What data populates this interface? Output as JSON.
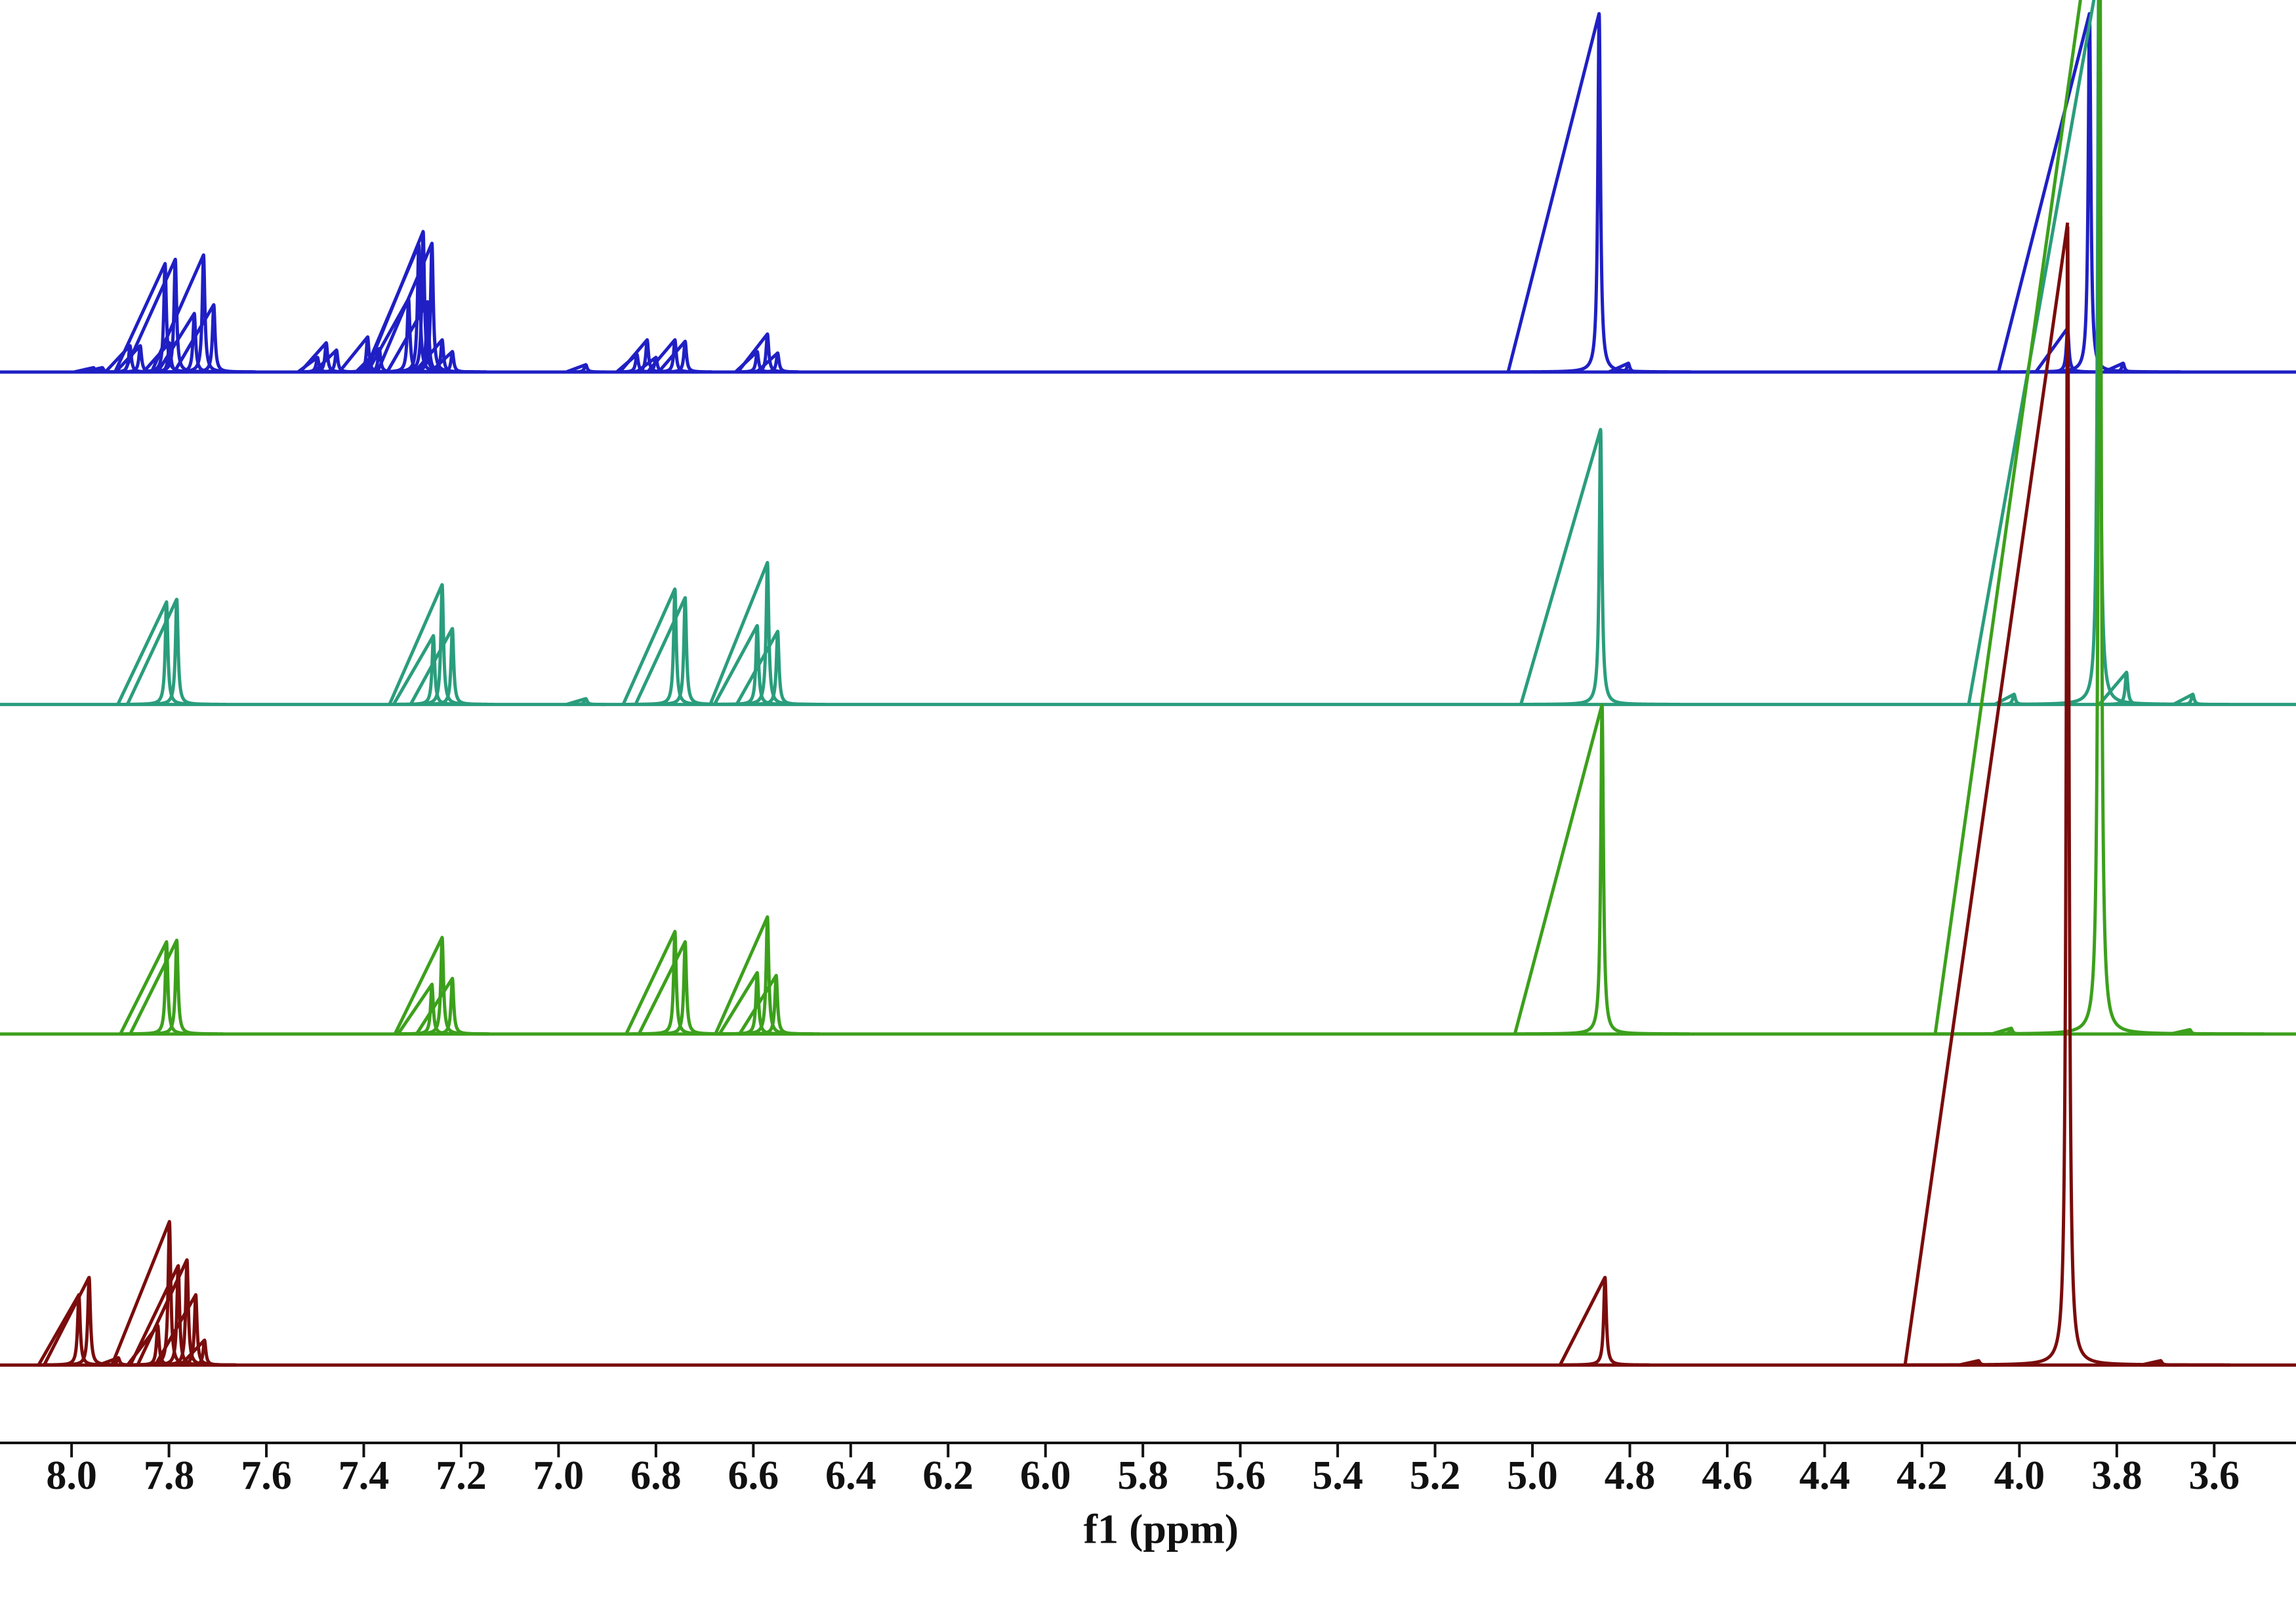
{
  "chart_data": {
    "type": "spectrum",
    "x_label": "f1 (ppm)",
    "xlim": [
      8.147,
      3.432
    ],
    "xticks": [
      {
        "value": 8,
        "label": "8.0"
      },
      7.8,
      7.6,
      7.4,
      7.2,
      {
        "value": 7,
        "label": "7.0"
      },
      6.8,
      6.6,
      6.4,
      6.2,
      {
        "value": 6,
        "label": "6.0"
      },
      5.8,
      5.6,
      5.4,
      5.2,
      {
        "value": 5,
        "label": "5.0"
      },
      4.8,
      4.6,
      4.4,
      4.2,
      {
        "value": 4,
        "label": "4.0"
      },
      3.8,
      3.6
    ],
    "series": [
      {
        "color": "#1f1fc4",
        "x": [
          7.955,
          7.937,
          7.88,
          7.859,
          7.808,
          7.799,
          7.787,
          7.748,
          7.729,
          7.708,
          7.495,
          7.477,
          7.456,
          7.392,
          7.368,
          7.308,
          7.287,
          7.278,
          7.269,
          7.26,
          7.239,
          7.218,
          6.944,
          6.839,
          6.818,
          6.8,
          6.761,
          6.74,
          6.592,
          6.571,
          6.55,
          4.863,
          4.803,
          3.901,
          3.856,
          3.787
        ],
        "values": [
          3,
          3,
          18,
          18,
          74,
          20,
          77,
          40,
          80,
          46,
          10,
          20,
          15,
          24,
          16,
          50,
          87,
          96,
          48,
          88,
          22,
          14,
          5,
          12,
          22,
          10,
          22,
          21,
          14,
          26,
          13,
          245,
          6,
          30,
          245,
          6
        ]
      },
      {
        "color": "#2a9d7c",
        "x": [
          7.805,
          7.784,
          7.257,
          7.239,
          7.218,
          6.944,
          6.761,
          6.74,
          6.592,
          6.571,
          6.55,
          4.86,
          4.011,
          3.837,
          3.78,
          3.644
        ],
        "values": [
          70,
          72,
          47,
          82,
          52,
          4,
          79,
          73,
          54,
          97,
          50,
          188,
          7,
          500,
          22,
          7
        ]
      },
      {
        "color": "#3ca01c",
        "x": [
          7.805,
          7.784,
          7.26,
          7.239,
          7.218,
          6.761,
          6.74,
          6.592,
          6.571,
          6.553,
          4.857,
          4.017,
          3.835,
          3.65
        ],
        "values": [
          63,
          64,
          34,
          66,
          38,
          70,
          63,
          42,
          80,
          40,
          225,
          4,
          800,
          3
        ]
      },
      {
        "color": "#7a0c0c",
        "x": [
          7.985,
          7.964,
          7.904,
          7.823,
          7.799,
          7.781,
          7.763,
          7.745,
          7.727,
          4.851,
          4.084,
          3.901,
          3.71
        ],
        "values": [
          48,
          60,
          5,
          27,
          98,
          68,
          72,
          48,
          17,
          60,
          3,
          780,
          3
        ]
      }
    ]
  }
}
